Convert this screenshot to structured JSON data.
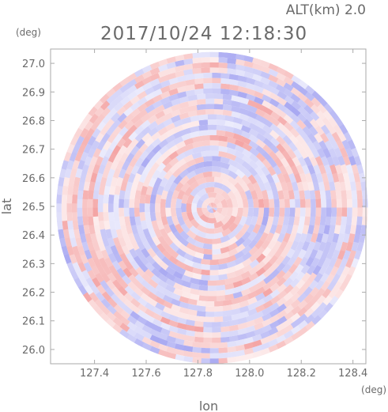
{
  "header": {
    "altitude_label": "ALT(km) 2.0",
    "timestamp": "2017/10/24 12:18:30"
  },
  "chart_data": {
    "type": "heatmap",
    "title": "2017/10/24 12:18:30",
    "subtitle": "ALT(km) 2.0",
    "xlabel": "lon",
    "ylabel": "lat",
    "x_unit": "(deg)",
    "y_unit": "(deg)",
    "xlim": [
      127.23,
      128.45
    ],
    "ylim": [
      25.95,
      27.05
    ],
    "x_ticks": [
      127.4,
      127.6,
      127.8,
      128.0,
      128.2,
      128.4
    ],
    "x_tick_labels": [
      "127.4",
      "127.6",
      "127.8",
      "128.0",
      "128.2",
      "128.4"
    ],
    "y_ticks": [
      26.0,
      26.1,
      26.2,
      26.3,
      26.4,
      26.5,
      26.6,
      26.7,
      26.8,
      26.9,
      27.0
    ],
    "y_tick_labels": [
      "26.0",
      "26.1",
      "26.2",
      "26.3",
      "26.4",
      "26.5",
      "26.6",
      "26.7",
      "26.8",
      "26.9",
      "27.0"
    ],
    "radar_center": [
      127.855,
      26.495
    ],
    "radar_range_lat_deg": 0.545,
    "colors": {
      "positive": "#f4a5a5",
      "negative": "#a9a9f2",
      "neutral": "#ffffff",
      "axis": "#aaaaaa",
      "text": "#6a6a6a"
    },
    "grid": false
  }
}
